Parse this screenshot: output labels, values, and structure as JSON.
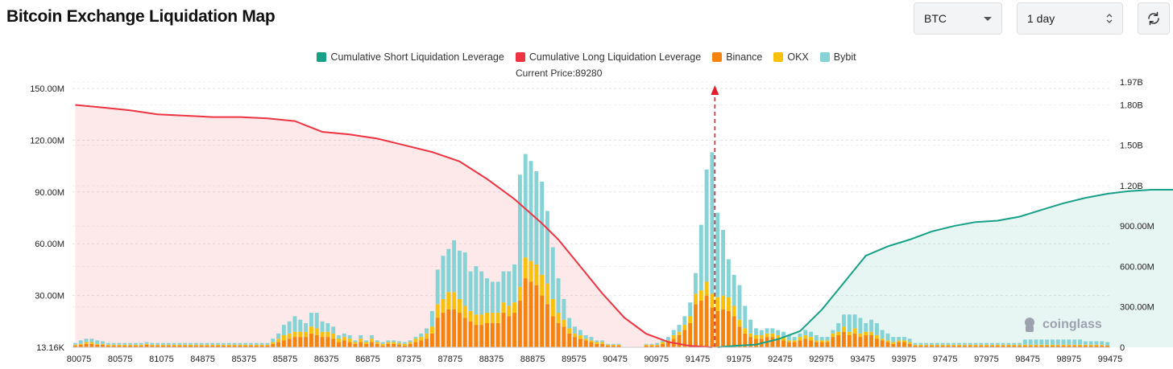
{
  "header": {
    "title": "Bitcoin Exchange Liquidation Map"
  },
  "controls": {
    "coin_select": "BTC",
    "range_select": "1 day",
    "refresh_icon": "refresh-icon"
  },
  "legend": [
    {
      "label": "Cumulative Short Liquidation Leverage",
      "color": "#16a085"
    },
    {
      "label": "Cumulative Long Liquidation Leverage",
      "color": "#ee3342"
    },
    {
      "label": "Binance",
      "color": "#f7830f"
    },
    {
      "label": "OKX",
      "color": "#f9c10a"
    },
    {
      "label": "Bybit",
      "color": "#86d3d6"
    }
  ],
  "current_price_label": "Current Price:89280",
  "brand": "coinglass",
  "chart_data": {
    "type": "bar",
    "current_price": 89280,
    "x_ticks": [
      "80075",
      "80575",
      "81075",
      "84875",
      "85375",
      "85875",
      "86375",
      "86875",
      "87375",
      "87875",
      "88375",
      "88875",
      "89575",
      "90475",
      "90975",
      "91475",
      "91975",
      "92475",
      "92975",
      "93475",
      "93975",
      "97475",
      "97975",
      "98475",
      "98975",
      "99475"
    ],
    "y_left_ticks": [
      "13.16K",
      "30.00M",
      "60.00M",
      "90.00M",
      "120.00M",
      "150.00M"
    ],
    "y_left_values": [
      0,
      30,
      60,
      90,
      120,
      150
    ],
    "y_left_max": 150,
    "y_right_ticks": [
      "0",
      "300.00M",
      "600.00M",
      "900.00M",
      "1.20B",
      "1.50B",
      "1.80B",
      "1.97B"
    ],
    "y_right_values": [
      0,
      0.3,
      0.6,
      0.9,
      1.2,
      1.5,
      1.8,
      1.97
    ],
    "y_right_max": 1.97,
    "series": [
      {
        "name": "Binance",
        "values": [
          1,
          1.5,
          2,
          2,
          1.5,
          1.5,
          1,
          1,
          1,
          1,
          1,
          1,
          1,
          1.5,
          1,
          1,
          1,
          1,
          1,
          1,
          1,
          1,
          1,
          1,
          1,
          1,
          1,
          1,
          1,
          1,
          1,
          1,
          1,
          1,
          1,
          1,
          2,
          3,
          4,
          5,
          6,
          6,
          6,
          8,
          7,
          6,
          6,
          5,
          3,
          4,
          3,
          2,
          3,
          2,
          3,
          2,
          1,
          2,
          2,
          1.5,
          1,
          2,
          3,
          4,
          5,
          8,
          17,
          20,
          22,
          22,
          20,
          17,
          15,
          13,
          13,
          14,
          14,
          14,
          20,
          18,
          20,
          27,
          40,
          38,
          36,
          30,
          25,
          18,
          14,
          12,
          8,
          6,
          5,
          4,
          3,
          2,
          2,
          1,
          1,
          1,
          0,
          0,
          0,
          0,
          1,
          1,
          1,
          2,
          3,
          5,
          7,
          10,
          14,
          25,
          27,
          30,
          23,
          21,
          22,
          21,
          18,
          12,
          8,
          6,
          5,
          5,
          6,
          6,
          5,
          4,
          3,
          3,
          4,
          5,
          4,
          3,
          3,
          3,
          6,
          7,
          9,
          7,
          8,
          6,
          7,
          7,
          5,
          4,
          3,
          2,
          3,
          3,
          2,
          1,
          1,
          1,
          1,
          1,
          1,
          1,
          1,
          1,
          1,
          1,
          1,
          1,
          1,
          1,
          1,
          1,
          1,
          1,
          1,
          1,
          1,
          1,
          1,
          1,
          1,
          1,
          1,
          1,
          1,
          1,
          1,
          1,
          1,
          1,
          1
        ]
      },
      {
        "name": "OKX",
        "values": [
          0.5,
          0.5,
          1,
          1,
          0.5,
          0.5,
          0.5,
          0.5,
          0.5,
          0.5,
          0.5,
          0.5,
          0.5,
          0.5,
          0.5,
          0.5,
          0.5,
          0.5,
          0.5,
          0.5,
          0.5,
          0.5,
          0.5,
          0.5,
          0.5,
          0.5,
          0.5,
          0.5,
          0.5,
          0.5,
          0.5,
          0.5,
          0.5,
          0.5,
          0.5,
          0.5,
          1,
          2,
          3,
          3,
          3,
          3,
          3,
          4,
          4,
          3,
          3,
          3,
          2,
          2,
          2,
          1,
          2,
          1,
          2,
          1,
          1,
          1,
          1,
          1,
          1,
          1,
          2,
          2,
          3,
          4,
          8,
          8,
          10,
          10,
          8,
          7,
          6,
          6,
          6,
          6,
          6,
          6,
          6,
          6,
          6,
          8,
          12,
          12,
          12,
          12,
          12,
          10,
          6,
          4,
          3,
          2,
          2,
          1,
          1,
          1,
          1,
          0.5,
          0.5,
          0.5,
          0,
          0,
          0,
          0,
          0.5,
          0.5,
          0.5,
          1,
          1,
          2,
          2,
          3,
          4,
          6,
          6,
          8,
          8,
          8,
          8,
          8,
          6,
          4,
          3,
          2,
          2,
          2,
          2,
          2,
          2,
          2,
          1,
          1,
          2,
          2,
          2,
          1,
          1,
          1,
          2,
          2,
          3,
          2,
          3,
          2,
          2,
          2,
          2,
          1,
          1,
          1,
          1,
          1,
          1,
          0.5,
          0.5,
          0.5,
          0.5,
          0.5,
          0.5,
          0.5,
          0.5,
          0.5,
          0.5,
          0.5,
          0.5,
          0.5,
          0.5,
          0.5,
          0.5,
          0.5,
          0.5,
          0.5,
          0.5,
          0.5,
          0.5,
          0.5,
          0.5,
          0.5,
          0.5,
          0.5,
          0.5,
          0.5,
          0.5,
          0.5,
          0.5,
          0.5,
          0.5,
          0.5
        ]
      },
      {
        "name": "Bybit",
        "values": [
          1,
          2,
          2,
          2,
          2,
          1.5,
          1,
          1,
          1,
          1,
          1,
          1,
          1,
          1,
          1,
          1,
          1,
          1,
          1,
          1,
          1,
          1,
          1,
          1,
          1,
          1,
          1,
          1,
          1,
          1,
          1,
          1,
          1,
          1,
          1,
          1,
          2,
          3,
          6,
          7,
          9,
          7,
          5,
          8,
          9,
          6,
          5,
          4,
          2,
          2,
          2,
          1,
          2,
          1,
          2,
          1,
          1,
          1,
          1,
          1,
          1,
          1,
          1,
          2,
          3,
          9,
          20,
          25,
          25,
          30,
          28,
          31,
          23,
          28,
          25,
          20,
          18,
          18,
          18,
          20,
          22,
          65,
          60,
          58,
          54,
          54,
          42,
          30,
          20,
          12,
          6,
          4,
          3,
          2,
          2,
          1,
          1,
          0.5,
          0.5,
          0.5,
          0,
          0,
          0,
          0,
          0.5,
          0.5,
          1,
          1,
          2,
          3,
          4,
          5,
          8,
          12,
          38,
          65,
          82,
          49,
          38,
          22,
          18,
          20,
          13,
          8,
          4,
          3,
          3,
          3,
          3,
          3,
          3,
          2,
          2,
          3,
          3,
          3,
          2,
          2,
          2,
          5,
          7,
          10,
          8,
          9,
          5,
          7,
          7,
          5,
          4,
          3,
          2,
          2,
          2,
          1,
          1,
          1,
          1,
          1,
          1,
          1,
          1,
          1,
          1,
          1,
          1,
          1,
          1,
          1,
          1,
          1,
          1,
          1,
          1,
          3,
          3,
          3,
          3,
          3,
          3,
          3,
          3,
          3,
          3,
          3,
          2,
          2,
          2,
          2,
          2
        ]
      },
      {
        "name": "Cumulative Long Liquidation Leverage",
        "points": [
          [
            0,
            1.8
          ],
          [
            5,
            1.78
          ],
          [
            10,
            1.76
          ],
          [
            15,
            1.73
          ],
          [
            20,
            1.72
          ],
          [
            25,
            1.71
          ],
          [
            30,
            1.71
          ],
          [
            35,
            1.7
          ],
          [
            40,
            1.68
          ],
          [
            45,
            1.6
          ],
          [
            50,
            1.58
          ],
          [
            55,
            1.55
          ],
          [
            60,
            1.5
          ],
          [
            65,
            1.45
          ],
          [
            70,
            1.38
          ],
          [
            75,
            1.25
          ],
          [
            80,
            1.1
          ],
          [
            85,
            0.92
          ],
          [
            88,
            0.8
          ],
          [
            92,
            0.6
          ],
          [
            96,
            0.4
          ],
          [
            100,
            0.22
          ],
          [
            104,
            0.1
          ],
          [
            108,
            0.04
          ],
          [
            112,
            0.01
          ],
          [
            116,
            0
          ]
        ]
      },
      {
        "name": "Cumulative Short Liquidation Leverage",
        "points": [
          [
            117,
            0
          ],
          [
            120,
            0.01
          ],
          [
            124,
            0.02
          ],
          [
            128,
            0.06
          ],
          [
            132,
            0.12
          ],
          [
            136,
            0.28
          ],
          [
            140,
            0.48
          ],
          [
            144,
            0.68
          ],
          [
            148,
            0.75
          ],
          [
            152,
            0.8
          ],
          [
            156,
            0.86
          ],
          [
            160,
            0.9
          ],
          [
            164,
            0.93
          ],
          [
            168,
            0.94
          ],
          [
            172,
            0.97
          ],
          [
            176,
            1.02
          ],
          [
            180,
            1.07
          ],
          [
            184,
            1.11
          ],
          [
            188,
            1.14
          ],
          [
            192,
            1.16
          ],
          [
            196,
            1.17
          ],
          [
            200,
            1.17
          ],
          [
            204,
            1.18
          ],
          [
            208,
            1.21
          ],
          [
            212,
            1.24
          ],
          [
            216,
            1.25
          ],
          [
            220,
            1.26
          ],
          [
            224,
            1.26
          ]
        ]
      }
    ]
  }
}
